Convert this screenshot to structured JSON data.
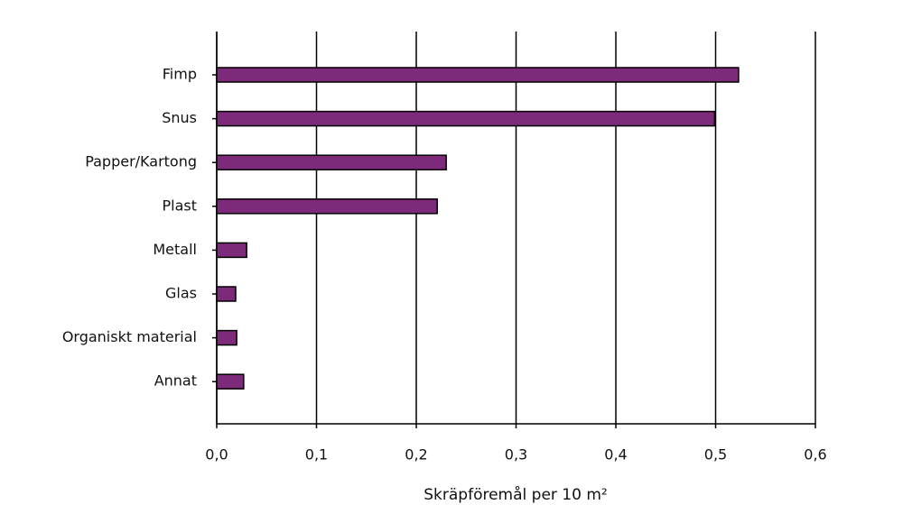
{
  "chart_data": {
    "type": "bar",
    "orientation": "horizontal",
    "x_label": "Skräpföremål per 10 m²",
    "categories": [
      "Fimp",
      "Snus",
      "Papper/Kartong",
      "Plast",
      "Metall",
      "Glas",
      "Organiskt material",
      "Annat"
    ],
    "values": [
      0.523,
      0.499,
      0.23,
      0.221,
      0.03,
      0.019,
      0.02,
      0.027
    ],
    "color": "#7d2a7a",
    "xlim": [
      0,
      0.6
    ],
    "xticks": [
      {
        "value": 0,
        "label": "0,0"
      },
      {
        "value": 0.1,
        "label": "0,1"
      },
      {
        "value": 0.2,
        "label": "0,2"
      },
      {
        "value": 0.3,
        "label": "0,3"
      },
      {
        "value": 0.4,
        "label": "0,4"
      },
      {
        "value": 0.5,
        "label": "0,5"
      },
      {
        "value": 0.6,
        "label": "0,6"
      }
    ],
    "grid": true
  }
}
